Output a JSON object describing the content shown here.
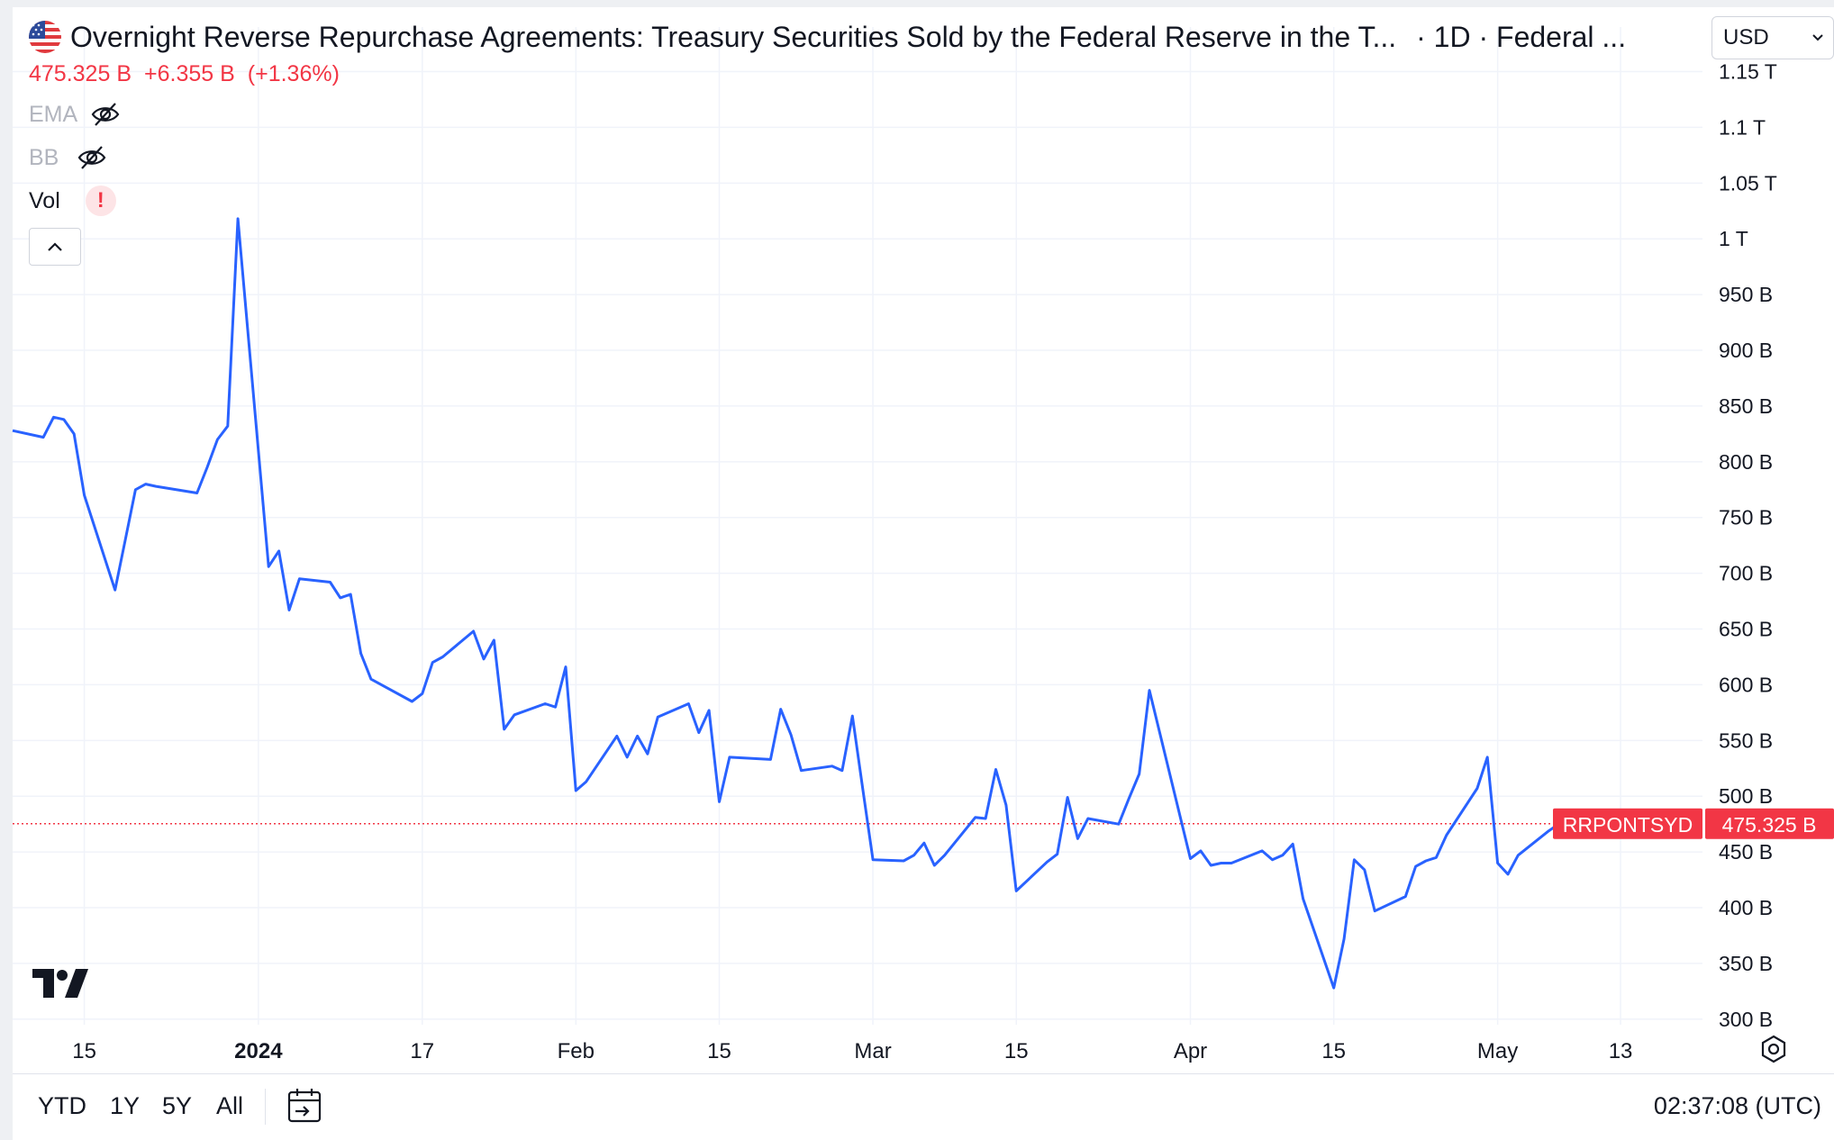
{
  "header": {
    "title": "Overnight Reverse Repurchase Agreements: Treasury Securities Sold by the Federal Reserve in the T...",
    "meta": "· 1D · Federal ...",
    "flag_icon": "us-flag-icon",
    "last_price": "475.325 B",
    "change": "+6.355 B",
    "change_pct": "(+1.36%)",
    "currency": "USD"
  },
  "indicators": [
    {
      "label": "EMA",
      "state": "hidden",
      "icon": "eye-off-icon"
    },
    {
      "label": "BB",
      "state": "hidden",
      "icon": "eye-off-icon"
    },
    {
      "label": "Vol",
      "state": "warning",
      "icon": "warning-icon",
      "badge": "!"
    }
  ],
  "price_marker": {
    "symbol": "RRPONTSYD",
    "value": "475.325 B"
  },
  "bottom_bar": {
    "ranges": [
      "YTD",
      "1Y",
      "5Y",
      "All"
    ],
    "clock": "02:37:08 (UTC)"
  },
  "colors": {
    "line": "#2962ff",
    "down": "#f23645",
    "grid": "#f0f3fa",
    "text": "#131722"
  },
  "chart_data": {
    "type": "line",
    "title": "Overnight Reverse Repurchase Agreements: Treasury Securities Sold by the Federal Reserve in the T...",
    "ylabel": "",
    "y_unit": "billions USD",
    "ylim": [
      295,
      1190
    ],
    "xlim": [
      "2023-12-08",
      "2024-05-21"
    ],
    "y_ticks": [
      {
        "v": 300,
        "label": "300 B"
      },
      {
        "v": 350,
        "label": "350 B"
      },
      {
        "v": 400,
        "label": "400 B"
      },
      {
        "v": 450,
        "label": "450 B"
      },
      {
        "v": 500,
        "label": "500 B"
      },
      {
        "v": 550,
        "label": "550 B"
      },
      {
        "v": 600,
        "label": "600 B"
      },
      {
        "v": 650,
        "label": "650 B"
      },
      {
        "v": 700,
        "label": "700 B"
      },
      {
        "v": 750,
        "label": "750 B"
      },
      {
        "v": 800,
        "label": "800 B"
      },
      {
        "v": 850,
        "label": "850 B"
      },
      {
        "v": 900,
        "label": "900 B"
      },
      {
        "v": 950,
        "label": "950 B"
      },
      {
        "v": 1000,
        "label": "1 T"
      },
      {
        "v": 1050,
        "label": "1.05 T"
      },
      {
        "v": 1100,
        "label": "1.1 T"
      },
      {
        "v": 1150,
        "label": "1.15 T"
      }
    ],
    "x_ticks": [
      {
        "date": "2023-12-15",
        "label": "15",
        "bold": false
      },
      {
        "date": "2024-01-01",
        "label": "2024",
        "bold": true
      },
      {
        "date": "2024-01-17",
        "label": "17",
        "bold": false
      },
      {
        "date": "2024-02-01",
        "label": "Feb",
        "bold": false
      },
      {
        "date": "2024-02-15",
        "label": "15",
        "bold": false
      },
      {
        "date": "2024-03-01",
        "label": "Mar",
        "bold": false
      },
      {
        "date": "2024-03-15",
        "label": "15",
        "bold": false
      },
      {
        "date": "2024-04-01",
        "label": "Apr",
        "bold": false
      },
      {
        "date": "2024-04-15",
        "label": "15",
        "bold": false
      },
      {
        "date": "2024-05-01",
        "label": "May",
        "bold": false
      },
      {
        "date": "2024-05-13",
        "label": "13",
        "bold": false
      }
    ],
    "series": [
      {
        "name": "RRPONTSYD",
        "points": [
          [
            "2023-12-08",
            828
          ],
          [
            "2023-12-11",
            822
          ],
          [
            "2023-12-12",
            840
          ],
          [
            "2023-12-13",
            838
          ],
          [
            "2023-12-14",
            825
          ],
          [
            "2023-12-15",
            770
          ],
          [
            "2023-12-18",
            685
          ],
          [
            "2023-12-19",
            730
          ],
          [
            "2023-12-20",
            775
          ],
          [
            "2023-12-21",
            780
          ],
          [
            "2023-12-22",
            778
          ],
          [
            "2023-12-26",
            772
          ],
          [
            "2023-12-27",
            795
          ],
          [
            "2023-12-28",
            820
          ],
          [
            "2023-12-29",
            832
          ],
          [
            "2023-12-30",
            1018
          ],
          [
            "2024-01-02",
            706
          ],
          [
            "2024-01-03",
            720
          ],
          [
            "2024-01-04",
            667
          ],
          [
            "2024-01-05",
            695
          ],
          [
            "2024-01-08",
            692
          ],
          [
            "2024-01-09",
            678
          ],
          [
            "2024-01-10",
            681
          ],
          [
            "2024-01-11",
            628
          ],
          [
            "2024-01-12",
            605
          ],
          [
            "2024-01-16",
            585
          ],
          [
            "2024-01-17",
            592
          ],
          [
            "2024-01-18",
            620
          ],
          [
            "2024-01-19",
            625
          ],
          [
            "2024-01-22",
            648
          ],
          [
            "2024-01-23",
            623
          ],
          [
            "2024-01-24",
            640
          ],
          [
            "2024-01-25",
            560
          ],
          [
            "2024-01-26",
            573
          ],
          [
            "2024-01-29",
            583
          ],
          [
            "2024-01-30",
            580
          ],
          [
            "2024-01-31",
            616
          ],
          [
            "2024-02-01",
            505
          ],
          [
            "2024-02-02",
            513
          ],
          [
            "2024-02-05",
            554
          ],
          [
            "2024-02-06",
            535
          ],
          [
            "2024-02-07",
            554
          ],
          [
            "2024-02-08",
            538
          ],
          [
            "2024-02-09",
            571
          ],
          [
            "2024-02-12",
            583
          ],
          [
            "2024-02-13",
            557
          ],
          [
            "2024-02-14",
            577
          ],
          [
            "2024-02-15",
            495
          ],
          [
            "2024-02-16",
            535
          ],
          [
            "2024-02-20",
            533
          ],
          [
            "2024-02-21",
            578
          ],
          [
            "2024-02-22",
            555
          ],
          [
            "2024-02-23",
            523
          ],
          [
            "2024-02-26",
            527
          ],
          [
            "2024-02-27",
            523
          ],
          [
            "2024-02-28",
            572
          ],
          [
            "2024-02-29",
            507
          ],
          [
            "2024-03-01",
            443
          ],
          [
            "2024-03-04",
            442
          ],
          [
            "2024-03-05",
            447
          ],
          [
            "2024-03-06",
            458
          ],
          [
            "2024-03-07",
            438
          ],
          [
            "2024-03-08",
            447
          ],
          [
            "2024-03-11",
            481
          ],
          [
            "2024-03-12",
            480
          ],
          [
            "2024-03-13",
            524
          ],
          [
            "2024-03-14",
            492
          ],
          [
            "2024-03-15",
            415
          ],
          [
            "2024-03-18",
            441
          ],
          [
            "2024-03-19",
            448
          ],
          [
            "2024-03-20",
            499
          ],
          [
            "2024-03-21",
            462
          ],
          [
            "2024-03-22",
            480
          ],
          [
            "2024-03-25",
            475
          ],
          [
            "2024-03-26",
            498
          ],
          [
            "2024-03-27",
            520
          ],
          [
            "2024-03-28",
            595
          ],
          [
            "2024-04-01",
            444
          ],
          [
            "2024-04-02",
            451
          ],
          [
            "2024-04-03",
            438
          ],
          [
            "2024-04-04",
            440
          ],
          [
            "2024-04-05",
            440
          ],
          [
            "2024-04-08",
            451
          ],
          [
            "2024-04-09",
            443
          ],
          [
            "2024-04-10",
            447
          ],
          [
            "2024-04-11",
            457
          ],
          [
            "2024-04-12",
            408
          ],
          [
            "2024-04-15",
            328
          ],
          [
            "2024-04-16",
            372
          ],
          [
            "2024-04-17",
            443
          ],
          [
            "2024-04-18",
            434
          ],
          [
            "2024-04-19",
            397
          ],
          [
            "2024-04-22",
            410
          ],
          [
            "2024-04-23",
            437
          ],
          [
            "2024-04-24",
            442
          ],
          [
            "2024-04-25",
            445
          ],
          [
            "2024-04-26",
            465
          ],
          [
            "2024-04-29",
            507
          ],
          [
            "2024-04-30",
            535
          ],
          [
            "2024-05-01",
            440
          ],
          [
            "2024-05-02",
            430
          ],
          [
            "2024-05-03",
            447
          ],
          [
            "2024-05-06",
            469
          ],
          [
            "2024-05-07",
            475.325
          ]
        ]
      }
    ],
    "grid": true
  }
}
